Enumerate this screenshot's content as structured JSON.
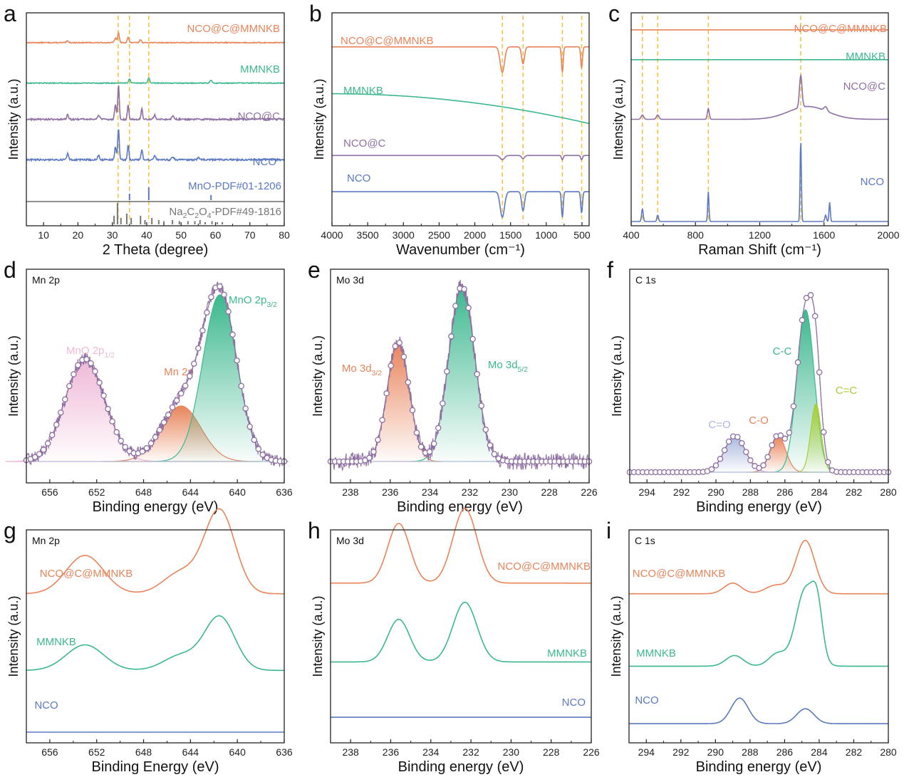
{
  "colors": {
    "orange": "#e8845a",
    "green": "#3cb88e",
    "purple": "#8e6fa3",
    "blue": "#5b78c2",
    "gray": "#777777",
    "dash": "#f5c23c",
    "pink": "#efb8d6",
    "lightblue": "#aab7dd",
    "lime": "#a6cf3a",
    "axis": "#222222"
  },
  "chart_data": [
    {
      "id": "a",
      "type": "line",
      "panel_label": "a",
      "xlabel": "2 Theta (degree)",
      "ylabel": "Intensity (a.u.)",
      "xlim": [
        5,
        80
      ],
      "xticks": [
        10,
        20,
        30,
        40,
        50,
        60,
        70,
        80
      ],
      "reference_lines": [
        31.7,
        35.0,
        40.6
      ],
      "series": [
        {
          "name": "NCO@C@MMNKB",
          "color": "orange",
          "baseline": 0.86,
          "noise": 0.002,
          "peaks": [
            [
              30.9,
              0.02,
              0.3
            ],
            [
              31.8,
              0.045,
              0.25
            ],
            [
              34.6,
              0.025,
              0.25
            ],
            [
              38.2,
              0.015,
              0.25
            ],
            [
              17,
              0.008,
              0.3
            ]
          ]
        },
        {
          "name": "MMNKB",
          "color": "green",
          "baseline": 0.67,
          "noise": 0.002,
          "peaks": [
            [
              35.0,
              0.02,
              0.25
            ],
            [
              40.6,
              0.025,
              0.25
            ],
            [
              58.7,
              0.012,
              0.3
            ]
          ]
        },
        {
          "name": "NCO@C",
          "color": "purple",
          "baseline": 0.5,
          "noise": 0.004,
          "peaks": [
            [
              31.8,
              0.16,
              0.22
            ],
            [
              30.9,
              0.07,
              0.25
            ],
            [
              34.6,
              0.07,
              0.22
            ],
            [
              38.6,
              0.05,
              0.22
            ],
            [
              17,
              0.02,
              0.25
            ],
            [
              26,
              0.02,
              0.3
            ],
            [
              42.3,
              0.02,
              0.3
            ],
            [
              47.6,
              0.015,
              0.3
            ]
          ]
        },
        {
          "name": "NCO",
          "color": "blue",
          "baseline": 0.31,
          "noise": 0.004,
          "peaks": [
            [
              31.8,
              0.15,
              0.22
            ],
            [
              30.9,
              0.06,
              0.25
            ],
            [
              34.6,
              0.07,
              0.22
            ],
            [
              38.6,
              0.05,
              0.22
            ],
            [
              17,
              0.03,
              0.25
            ],
            [
              26,
              0.02,
              0.3
            ],
            [
              42.3,
              0.02,
              0.3
            ],
            [
              47.6,
              0.015,
              0.3
            ],
            [
              55,
              0.01,
              0.3
            ]
          ]
        }
      ],
      "reference_patterns": [
        {
          "name": "MnO-PDF#01-1206",
          "color": "blue",
          "sticks": [
            [
              35.0,
              0.5
            ],
            [
              40.6,
              1.0
            ],
            [
              58.7,
              0.4
            ]
          ]
        },
        {
          "name": "Na2C2O4-PDF#49-1816",
          "color": "gray",
          "sticks": [
            [
              30.5,
              0.4
            ],
            [
              31.5,
              1.0
            ],
            [
              32.5,
              0.3
            ],
            [
              34.2,
              0.5
            ],
            [
              35.5,
              0.3
            ],
            [
              38.2,
              0.4
            ],
            [
              39.5,
              0.2
            ],
            [
              41.5,
              0.3
            ],
            [
              43.5,
              0.2
            ],
            [
              45,
              0.15
            ],
            [
              47.5,
              0.2
            ],
            [
              49.5,
              0.15
            ],
            [
              52,
              0.15
            ],
            [
              54,
              0.15
            ],
            [
              55.5,
              0.2
            ],
            [
              57,
              0.1
            ],
            [
              59,
              0.15
            ],
            [
              60.5,
              0.1
            ],
            [
              62,
              0.1
            ]
          ]
        }
      ]
    },
    {
      "id": "b",
      "type": "line",
      "panel_label": "b",
      "xlabel": "Wavenumber (cm⁻¹)",
      "ylabel": "Intensity (a.u.)",
      "xlim": [
        4000,
        400
      ],
      "xticks": [
        4000,
        3500,
        3000,
        2500,
        2000,
        1500,
        1000,
        500
      ],
      "reference_lines": [
        1615,
        1325,
        775,
        505
      ],
      "series": [
        {
          "name": "NCO@C@MMNKB",
          "color": "orange",
          "baseline": 0.84,
          "tilt": 0,
          "dips": [
            [
              1615,
              0.12,
              30
            ],
            [
              1325,
              0.08,
              20
            ],
            [
              775,
              0.12,
              12
            ],
            [
              505,
              0.1,
              12
            ]
          ]
        },
        {
          "name": "MMNKB",
          "color": "green",
          "baseline": 0.62,
          "tilt": 0.14,
          "dips": []
        },
        {
          "name": "NCO@C",
          "color": "purple",
          "baseline": 0.33,
          "tilt": 0,
          "dips": [
            [
              1615,
              0.02,
              30
            ],
            [
              1325,
              0.015,
              20
            ],
            [
              775,
              0.02,
              12
            ],
            [
              505,
              0.02,
              12
            ]
          ]
        },
        {
          "name": "NCO",
          "color": "blue",
          "baseline": 0.16,
          "tilt": 0,
          "dips": [
            [
              1615,
              0.12,
              30
            ],
            [
              1325,
              0.09,
              20
            ],
            [
              775,
              0.12,
              12
            ],
            [
              505,
              0.1,
              12
            ]
          ]
        }
      ]
    },
    {
      "id": "c",
      "type": "line",
      "panel_label": "c",
      "xlabel": "Raman Shift (cm⁻¹)",
      "ylabel": "Intensity (a.u.)",
      "xlim": [
        400,
        2000
      ],
      "xticks": [
        400,
        800,
        1200,
        1600,
        2000
      ],
      "reference_lines": [
        470,
        565,
        880,
        1455
      ],
      "series": [
        {
          "name": "NCO@C@MMNKB",
          "color": "orange",
          "baseline": 0.92,
          "peaks": []
        },
        {
          "name": "MMNKB",
          "color": "green",
          "baseline": 0.78,
          "peaks": []
        },
        {
          "name": "NCO@C",
          "color": "purple",
          "baseline": 0.5,
          "peaks": [
            [
              470,
              0.02,
              8
            ],
            [
              565,
              0.02,
              8
            ],
            [
              880,
              0.05,
              6
            ],
            [
              1455,
              0.15,
              8
            ],
            [
              1610,
              0.02,
              10
            ]
          ],
          "humps": [
            [
              1500,
              0.06,
              120
            ]
          ]
        },
        {
          "name": "NCO",
          "color": "blue",
          "baseline": 0.02,
          "peaks": [
            [
              470,
              0.06,
              5
            ],
            [
              565,
              0.03,
              5
            ],
            [
              880,
              0.14,
              4
            ],
            [
              1455,
              0.38,
              4
            ],
            [
              1610,
              0.03,
              5
            ],
            [
              1635,
              0.09,
              4
            ]
          ]
        }
      ]
    },
    {
      "id": "d",
      "type": "area",
      "panel_label": "d",
      "panel_title": "Mn 2p",
      "xlabel": "Binding energy (eV)",
      "ylabel": "Intensity (a.u.)",
      "xlim": [
        658,
        636
      ],
      "xticks": [
        656,
        652,
        648,
        644,
        640,
        636
      ],
      "baseline": 0.1,
      "noise": 0.03,
      "components": [
        {
          "name": "MnO 2p1/2",
          "center": 653.0,
          "height": 0.48,
          "width": 1.7,
          "color": "pink"
        },
        {
          "name": "Mn 2p",
          "center": 644.8,
          "height": 0.26,
          "width": 1.7,
          "color": "orange"
        },
        {
          "name": "MnO 2p3/2",
          "center": 641.5,
          "height": 0.78,
          "width": 1.45,
          "color": "green"
        }
      ]
    },
    {
      "id": "e",
      "type": "area",
      "panel_label": "e",
      "panel_title": "Mo 3d",
      "xlabel": "Binding energy (eV)",
      "ylabel": "Intensity (a.u.)",
      "xlim": [
        239,
        226
      ],
      "xticks": [
        238,
        236,
        234,
        232,
        230,
        228,
        226
      ],
      "baseline": 0.1,
      "noise": 0.04,
      "components": [
        {
          "name": "Mo 3d3/2",
          "center": 235.6,
          "height": 0.56,
          "width": 0.55,
          "color": "orange"
        },
        {
          "name": "Mo 3d5/2",
          "center": 232.4,
          "height": 0.82,
          "width": 0.65,
          "color": "green"
        }
      ]
    },
    {
      "id": "f",
      "type": "area",
      "panel_label": "f",
      "panel_title": "C 1s",
      "xlabel": "Binding energy (eV)",
      "ylabel": "Intensity (a.u.)",
      "xlim": [
        295,
        280
      ],
      "xticks": [
        294,
        292,
        290,
        288,
        286,
        284,
        282,
        280
      ],
      "baseline": 0.05,
      "noise": 0.004,
      "components": [
        {
          "name": "C=O",
          "center": 288.9,
          "height": 0.17,
          "width": 0.6,
          "color": "lightblue"
        },
        {
          "name": "C-O",
          "center": 286.4,
          "height": 0.17,
          "width": 0.45,
          "color": "orange"
        },
        {
          "name": "C-C",
          "center": 284.8,
          "height": 0.76,
          "width": 0.5,
          "color": "green"
        },
        {
          "name": "C=C",
          "center": 284.2,
          "height": 0.32,
          "width": 0.3,
          "color": "lime"
        }
      ]
    },
    {
      "id": "g",
      "type": "line",
      "panel_label": "g",
      "panel_title": "Mn 2p",
      "xlabel": "Binding Energy (eV)",
      "ylabel": "Intensity (a.u.)",
      "xlim": [
        658,
        636
      ],
      "xticks": [
        656,
        652,
        648,
        644,
        640,
        636
      ],
      "series": [
        {
          "name": "NCO@C@MMNKB",
          "color": "orange",
          "baseline": 0.7,
          "peaks": [
            [
              653.0,
              0.18,
              1.6
            ],
            [
              644.8,
              0.1,
              1.5
            ],
            [
              641.5,
              0.39,
              1.3
            ]
          ]
        },
        {
          "name": "MMNKB",
          "color": "green",
          "baseline": 0.34,
          "peaks": [
            [
              653.0,
              0.12,
              1.6
            ],
            [
              644.8,
              0.07,
              1.5
            ],
            [
              641.5,
              0.25,
              1.3
            ]
          ]
        },
        {
          "name": "NCO",
          "color": "blue",
          "baseline": 0.05,
          "peaks": []
        }
      ]
    },
    {
      "id": "h",
      "type": "line",
      "panel_label": "h",
      "panel_title": "Mo 3d",
      "xlabel": "Binding energy (eV)",
      "ylabel": "Intensity (a.u.)",
      "xlim": [
        239,
        226
      ],
      "xticks": [
        238,
        236,
        234,
        232,
        230,
        228,
        226
      ],
      "series": [
        {
          "name": "NCO@C@MMNKB",
          "color": "orange",
          "baseline": 0.75,
          "peaks": [
            [
              235.6,
              0.28,
              0.55
            ],
            [
              232.3,
              0.35,
              0.6
            ]
          ]
        },
        {
          "name": "MMNKB",
          "color": "green",
          "baseline": 0.38,
          "peaks": [
            [
              235.6,
              0.2,
              0.55
            ],
            [
              232.3,
              0.28,
              0.6
            ]
          ]
        },
        {
          "name": "NCO",
          "color": "blue",
          "baseline": 0.12,
          "peaks": []
        }
      ]
    },
    {
      "id": "i",
      "type": "line",
      "panel_label": "i",
      "panel_title": "C 1s",
      "xlabel": "Binding energy (eV)",
      "ylabel": "Intensity (a.u.)",
      "xlim": [
        295,
        280
      ],
      "xticks": [
        294,
        292,
        290,
        288,
        286,
        284,
        282,
        280
      ],
      "series": [
        {
          "name": "NCO@C@MMNKB",
          "color": "orange",
          "baseline": 0.7,
          "peaks": [
            [
              289.0,
              0.05,
              0.5
            ],
            [
              286.5,
              0.04,
              0.6
            ],
            [
              284.8,
              0.25,
              0.55
            ]
          ]
        },
        {
          "name": "MMNKB",
          "color": "green",
          "baseline": 0.36,
          "peaks": [
            [
              288.9,
              0.05,
              0.5
            ],
            [
              286.4,
              0.06,
              0.5
            ],
            [
              284.8,
              0.36,
              0.55
            ],
            [
              284.1,
              0.2,
              0.3
            ]
          ]
        },
        {
          "name": "NCO",
          "color": "blue",
          "baseline": 0.09,
          "peaks": [
            [
              288.6,
              0.12,
              0.5
            ],
            [
              284.8,
              0.07,
              0.5
            ]
          ]
        }
      ]
    }
  ]
}
